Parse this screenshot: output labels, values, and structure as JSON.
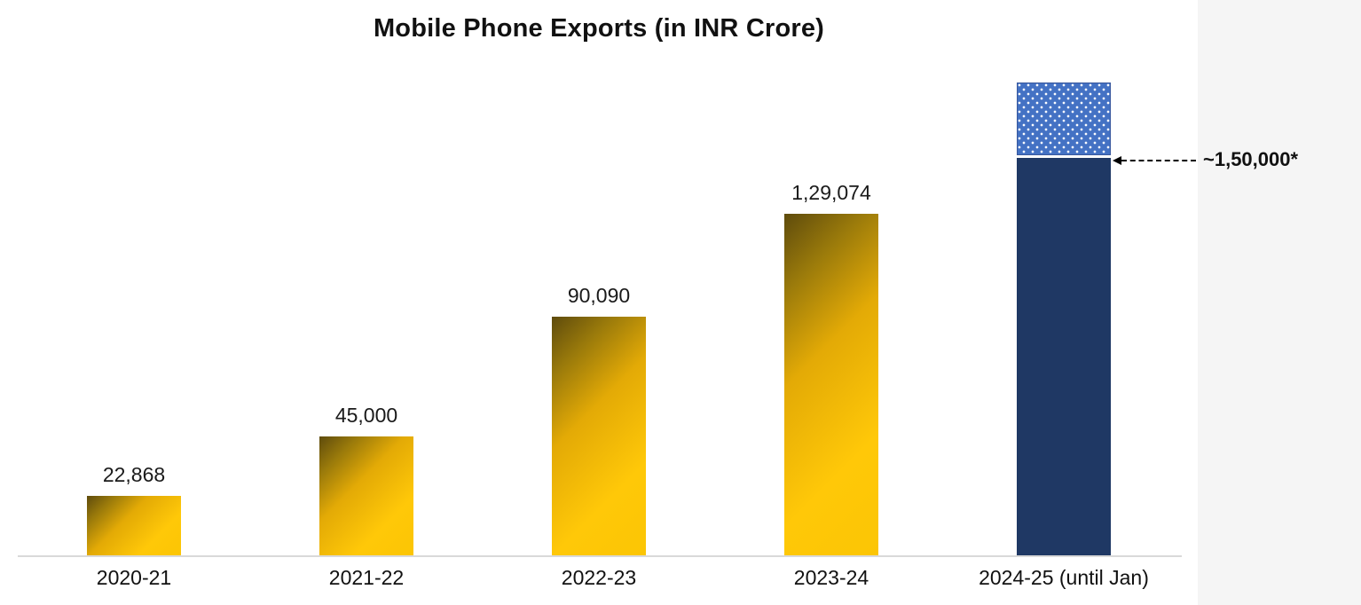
{
  "page": {
    "background": "#ffffff",
    "side_panel_color": "#f5f5f5"
  },
  "chart_data": {
    "type": "bar",
    "title": "Mobile Phone Exports (in INR Crore)",
    "xlabel": "",
    "ylabel": "",
    "ylim": [
      0,
      178000
    ],
    "grid": false,
    "legend": "none",
    "categories": [
      "2020-21",
      "2021-22",
      "2022-23",
      "2023-24",
      "2024-25 (until Jan)"
    ],
    "bars": [
      {
        "category": "2020-21",
        "value": 22868,
        "label": "22,868",
        "style": "gold",
        "projected_cap": false
      },
      {
        "category": "2021-22",
        "value": 45000,
        "label": "45,000",
        "style": "gold",
        "projected_cap": false
      },
      {
        "category": "2022-23",
        "value": 90090,
        "label": "90,090",
        "style": "gold",
        "projected_cap": false
      },
      {
        "category": "2023-24",
        "value": 129074,
        "label": "1,29,074",
        "style": "gold",
        "projected_cap": false
      },
      {
        "category": "2024-25 (until Jan)",
        "value": 150000,
        "label": "",
        "style": "navy",
        "projected_cap": true
      }
    ],
    "annotation": {
      "text": "~1,50,000*",
      "points_to": "2024-25 (until Jan)"
    },
    "colors": {
      "gold_dark": "#5e4b0c",
      "gold_mid": "#e3aa06",
      "gold_bright": "#ffc808",
      "navy": "#1f3864",
      "cap_fill": "#4472c4",
      "cap_dot": "#ffffff",
      "axis_line": "#d9d9d9"
    }
  }
}
